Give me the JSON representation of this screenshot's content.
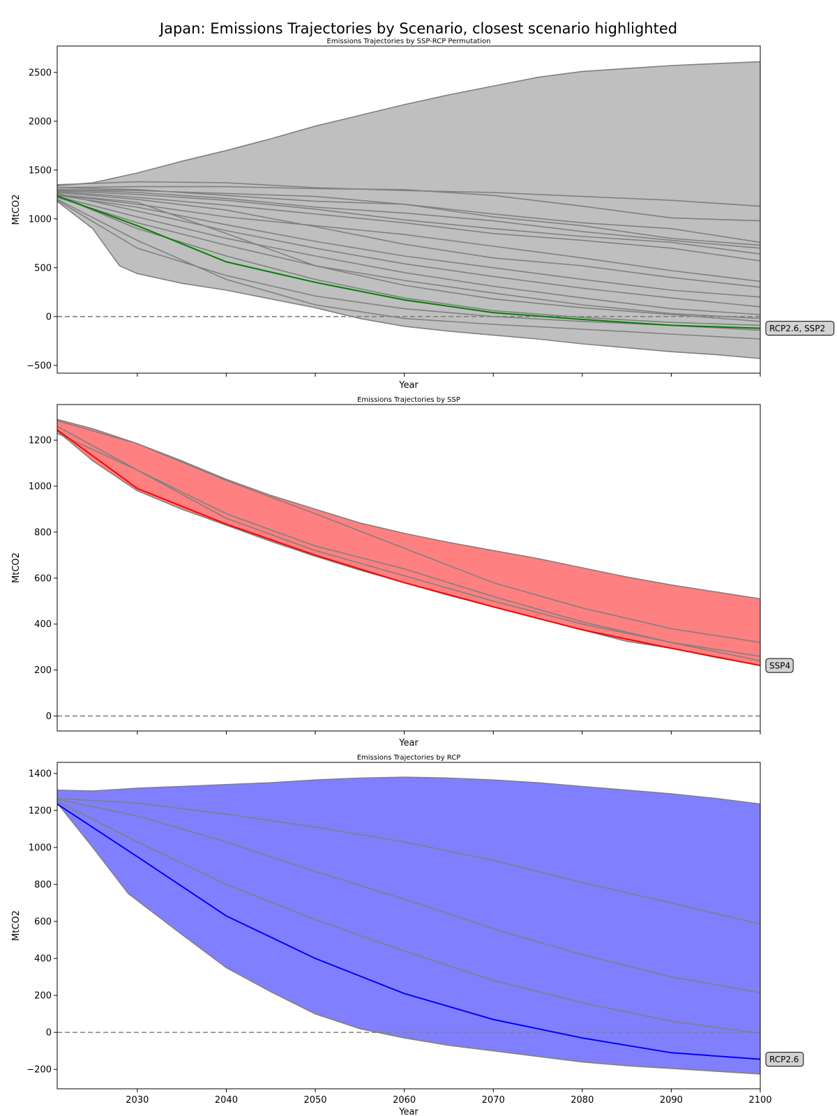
{
  "figure": {
    "title": "Japan: Emissions Trajectories by Scenario, closest scenario highlighted"
  },
  "chart_data": [
    {
      "type": "line",
      "title": "Emissions Trajectories by SSP-RCP Permutation",
      "xlabel": "Year",
      "ylabel": "MtCO2",
      "xlim": [
        2021,
        2100
      ],
      "ylim": [
        -580,
        2770
      ],
      "yticks": [
        -500,
        0,
        500,
        1000,
        1500,
        2000,
        2500
      ],
      "xticks": [
        2030,
        2040,
        2050,
        2060,
        2070,
        2080,
        2090,
        2100
      ],
      "show_xtick_labels": false,
      "fill_color": "#bfbfbf",
      "line_color": "#808080",
      "highlight_color": "#008000",
      "zero_line": true,
      "grid": false,
      "callout": "RCP2.6, SSP2",
      "envelope_upper": [
        {
          "x": 2021,
          "y": 1340
        },
        {
          "x": 2025,
          "y": 1370
        },
        {
          "x": 2030,
          "y": 1470
        },
        {
          "x": 2035,
          "y": 1590
        },
        {
          "x": 2040,
          "y": 1700
        },
        {
          "x": 2045,
          "y": 1820
        },
        {
          "x": 2050,
          "y": 1950
        },
        {
          "x": 2055,
          "y": 2060
        },
        {
          "x": 2060,
          "y": 2170
        },
        {
          "x": 2065,
          "y": 2270
        },
        {
          "x": 2070,
          "y": 2360
        },
        {
          "x": 2075,
          "y": 2450
        },
        {
          "x": 2080,
          "y": 2510
        },
        {
          "x": 2085,
          "y": 2540
        },
        {
          "x": 2090,
          "y": 2570
        },
        {
          "x": 2095,
          "y": 2590
        },
        {
          "x": 2100,
          "y": 2610
        }
      ],
      "envelope_lower": [
        {
          "x": 2021,
          "y": 1180
        },
        {
          "x": 2025,
          "y": 900
        },
        {
          "x": 2028,
          "y": 520
        },
        {
          "x": 2030,
          "y": 440
        },
        {
          "x": 2035,
          "y": 340
        },
        {
          "x": 2040,
          "y": 270
        },
        {
          "x": 2045,
          "y": 180
        },
        {
          "x": 2050,
          "y": 90
        },
        {
          "x": 2055,
          "y": -20
        },
        {
          "x": 2060,
          "y": -100
        },
        {
          "x": 2065,
          "y": -150
        },
        {
          "x": 2070,
          "y": -190
        },
        {
          "x": 2075,
          "y": -230
        },
        {
          "x": 2080,
          "y": -280
        },
        {
          "x": 2085,
          "y": -320
        },
        {
          "x": 2090,
          "y": -360
        },
        {
          "x": 2095,
          "y": -390
        },
        {
          "x": 2100,
          "y": -430
        }
      ],
      "x": [
        2021,
        2030,
        2040,
        2050,
        2060,
        2070,
        2080,
        2090,
        2100
      ],
      "series": [
        {
          "values": [
            1350,
            1380,
            1370,
            1320,
            1290,
            1270,
            1230,
            1190,
            1130
          ]
        },
        {
          "values": [
            1320,
            1330,
            1330,
            1310,
            1300,
            1240,
            1130,
            1010,
            980
          ]
        },
        {
          "values": [
            1300,
            1290,
            1260,
            1230,
            1150,
            1050,
            960,
            900,
            760
          ]
        },
        {
          "values": [
            1320,
            1300,
            1240,
            1180,
            1150,
            1020,
            930,
            800,
            730
          ]
        },
        {
          "values": [
            1300,
            1270,
            1210,
            1120,
            1060,
            980,
            870,
            780,
            700
          ]
        },
        {
          "values": [
            1290,
            1250,
            1190,
            1100,
            990,
            900,
            820,
            760,
            640
          ]
        },
        {
          "values": [
            1280,
            1220,
            1140,
            1050,
            960,
            850,
            780,
            700,
            570
          ]
        },
        {
          "values": [
            1250,
            1150,
            1020,
            930,
            840,
            720,
            600,
            470,
            360
          ]
        },
        {
          "values": [
            1270,
            1200,
            1090,
            920,
            740,
            600,
            520,
            400,
            300
          ]
        },
        {
          "values": [
            1240,
            1120,
            940,
            770,
            620,
            500,
            380,
            270,
            200
          ]
        },
        {
          "values": [
            1260,
            1080,
            880,
            700,
            540,
            410,
            290,
            190,
            100
          ]
        },
        {
          "values": [
            1230,
            1020,
            800,
            620,
            450,
            310,
            190,
            80,
            20
          ]
        },
        {
          "values": [
            1250,
            1170,
            850,
            520,
            320,
            180,
            90,
            20,
            -50
          ]
        },
        {
          "values": [
            1220,
            960,
            730,
            520,
            370,
            240,
            120,
            30,
            -20
          ]
        },
        {
          "values": [
            1240,
            900,
            620,
            380,
            190,
            60,
            -10,
            -60,
            -90
          ]
        },
        {
          "values": [
            1190,
            700,
            420,
            210,
            80,
            0,
            -50,
            -90,
            -140
          ]
        },
        {
          "values": [
            1200,
            780,
            380,
            120,
            -20,
            -80,
            -130,
            -180,
            -230
          ]
        }
      ],
      "highlight": {
        "name": "RCP2.6, SSP2",
        "values": [
          1235,
          930,
          560,
          350,
          170,
          40,
          -30,
          -90,
          -120
        ]
      }
    },
    {
      "type": "line",
      "title": "Emissions Trajectories by SSP",
      "xlabel": "Year",
      "ylabel": "MtCO2",
      "xlim": [
        2021,
        2100
      ],
      "ylim": [
        -65,
        1355
      ],
      "yticks": [
        0,
        200,
        400,
        600,
        800,
        1000,
        1200
      ],
      "xticks": [
        2030,
        2040,
        2050,
        2060,
        2070,
        2080,
        2090,
        2100
      ],
      "show_xtick_labels": false,
      "fill_color": "#ff8080",
      "line_color": "#808080",
      "highlight_color": "#ff0000",
      "zero_line": true,
      "grid": false,
      "callout": "SSP4",
      "envelope_upper": [
        {
          "x": 2021,
          "y": 1290
        },
        {
          "x": 2025,
          "y": 1250
        },
        {
          "x": 2030,
          "y": 1185
        },
        {
          "x": 2035,
          "y": 1110
        },
        {
          "x": 2040,
          "y": 1030
        },
        {
          "x": 2045,
          "y": 960
        },
        {
          "x": 2050,
          "y": 900
        },
        {
          "x": 2055,
          "y": 840
        },
        {
          "x": 2060,
          "y": 795
        },
        {
          "x": 2065,
          "y": 755
        },
        {
          "x": 2070,
          "y": 720
        },
        {
          "x": 2075,
          "y": 685
        },
        {
          "x": 2080,
          "y": 645
        },
        {
          "x": 2085,
          "y": 605
        },
        {
          "x": 2090,
          "y": 570
        },
        {
          "x": 2095,
          "y": 540
        },
        {
          "x": 2100,
          "y": 510
        }
      ],
      "envelope_lower": [
        {
          "x": 2021,
          "y": 1240
        },
        {
          "x": 2025,
          "y": 1110
        },
        {
          "x": 2030,
          "y": 980
        },
        {
          "x": 2035,
          "y": 900
        },
        {
          "x": 2040,
          "y": 830
        },
        {
          "x": 2045,
          "y": 760
        },
        {
          "x": 2050,
          "y": 695
        },
        {
          "x": 2055,
          "y": 635
        },
        {
          "x": 2060,
          "y": 580
        },
        {
          "x": 2065,
          "y": 525
        },
        {
          "x": 2070,
          "y": 475
        },
        {
          "x": 2075,
          "y": 425
        },
        {
          "x": 2080,
          "y": 375
        },
        {
          "x": 2085,
          "y": 325
        },
        {
          "x": 2090,
          "y": 295
        },
        {
          "x": 2095,
          "y": 255
        },
        {
          "x": 2100,
          "y": 220
        }
      ],
      "x": [
        2021,
        2030,
        2040,
        2050,
        2060,
        2070,
        2080,
        2090,
        2100
      ],
      "series": [
        {
          "values": [
            1285,
            1185,
            1025,
            880,
            730,
            580,
            470,
            380,
            320
          ]
        },
        {
          "values": [
            1260,
            1070,
            880,
            740,
            640,
            520,
            410,
            320,
            260
          ]
        },
        {
          "values": [
            1230,
            1070,
            860,
            720,
            610,
            500,
            400,
            320,
            240
          ]
        }
      ],
      "highlight": {
        "name": "SSP4",
        "values": [
          1245,
          990,
          835,
          700,
          580,
          475,
          375,
          295,
          220
        ]
      }
    },
    {
      "type": "line",
      "title": "Emissions Trajectories by RCP",
      "xlabel": "Year",
      "ylabel": "MtCO2",
      "xlim": [
        2021,
        2100
      ],
      "ylim": [
        -305,
        1460
      ],
      "yticks": [
        -200,
        0,
        200,
        400,
        600,
        800,
        1000,
        1200,
        1400
      ],
      "xticks": [
        2030,
        2040,
        2050,
        2060,
        2070,
        2080,
        2090,
        2100
      ],
      "show_xtick_labels": true,
      "fill_color": "#8080ff",
      "line_color": "#808080",
      "highlight_color": "#0000ff",
      "zero_line": true,
      "grid": false,
      "callout": "RCP2.6",
      "envelope_upper": [
        {
          "x": 2021,
          "y": 1310
        },
        {
          "x": 2025,
          "y": 1305
        },
        {
          "x": 2030,
          "y": 1320
        },
        {
          "x": 2035,
          "y": 1330
        },
        {
          "x": 2040,
          "y": 1340
        },
        {
          "x": 2045,
          "y": 1350
        },
        {
          "x": 2050,
          "y": 1365
        },
        {
          "x": 2055,
          "y": 1375
        },
        {
          "x": 2060,
          "y": 1380
        },
        {
          "x": 2065,
          "y": 1375
        },
        {
          "x": 2070,
          "y": 1365
        },
        {
          "x": 2075,
          "y": 1350
        },
        {
          "x": 2080,
          "y": 1330
        },
        {
          "x": 2085,
          "y": 1310
        },
        {
          "x": 2090,
          "y": 1290
        },
        {
          "x": 2095,
          "y": 1265
        },
        {
          "x": 2100,
          "y": 1235
        }
      ],
      "envelope_lower": [
        {
          "x": 2021,
          "y": 1240
        },
        {
          "x": 2025,
          "y": 1000
        },
        {
          "x": 2029,
          "y": 750
        },
        {
          "x": 2035,
          "y": 530
        },
        {
          "x": 2040,
          "y": 350
        },
        {
          "x": 2045,
          "y": 220
        },
        {
          "x": 2050,
          "y": 100
        },
        {
          "x": 2055,
          "y": 20
        },
        {
          "x": 2060,
          "y": -30
        },
        {
          "x": 2065,
          "y": -70
        },
        {
          "x": 2070,
          "y": -100
        },
        {
          "x": 2075,
          "y": -130
        },
        {
          "x": 2080,
          "y": -160
        },
        {
          "x": 2085,
          "y": -180
        },
        {
          "x": 2090,
          "y": -195
        },
        {
          "x": 2095,
          "y": -210
        },
        {
          "x": 2100,
          "y": -225
        }
      ],
      "x": [
        2021,
        2030,
        2040,
        2050,
        2060,
        2070,
        2080,
        2090,
        2100
      ],
      "series": [
        {
          "values": [
            1265,
            1240,
            1180,
            1110,
            1030,
            930,
            810,
            700,
            585
          ]
        },
        {
          "values": [
            1260,
            1170,
            1030,
            870,
            720,
            560,
            420,
            300,
            215
          ]
        },
        {
          "values": [
            1250,
            1030,
            800,
            610,
            440,
            280,
            160,
            60,
            -5
          ]
        }
      ],
      "highlight": {
        "name": "RCP2.6",
        "values": [
          1235,
          950,
          630,
          400,
          210,
          70,
          -30,
          -110,
          -145
        ]
      }
    }
  ]
}
